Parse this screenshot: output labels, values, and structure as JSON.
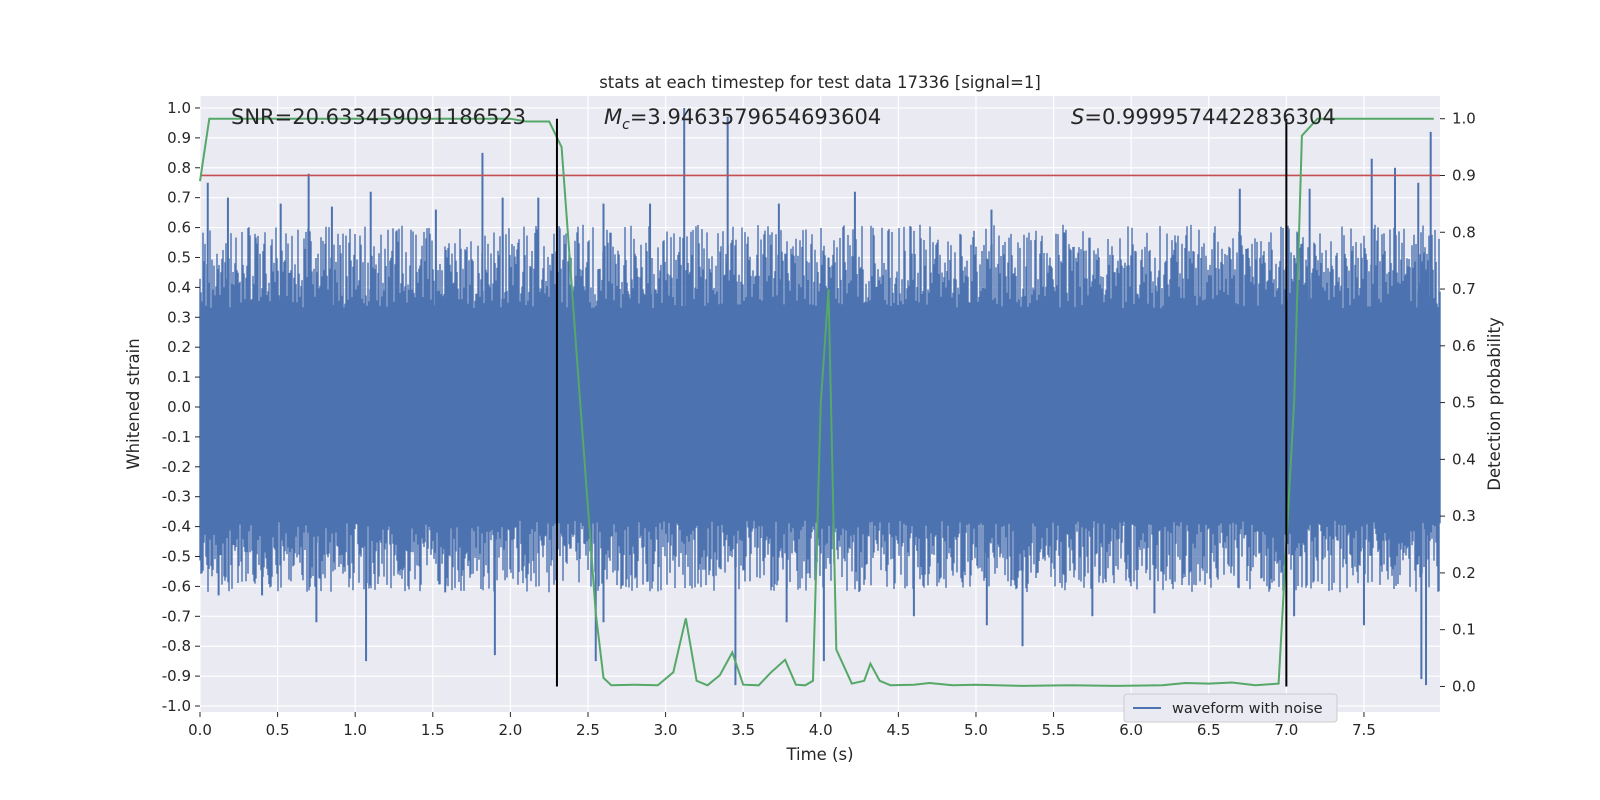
{
  "chart_data": {
    "type": "line",
    "title": "stats at each timestep for test data 17336 [signal=1]",
    "xlabel": "Time (s)",
    "ylabel": "Whitened strain",
    "y2label": "Detection probability",
    "xlim": [
      0.0,
      7.99
    ],
    "ylim": [
      -1.02,
      1.04
    ],
    "y2lim": [
      -0.045,
      1.04
    ],
    "xticks": [
      "0.0",
      "0.5",
      "1.0",
      "1.5",
      "2.0",
      "2.5",
      "3.0",
      "3.5",
      "4.0",
      "4.5",
      "5.0",
      "5.5",
      "6.0",
      "6.5",
      "7.0",
      "7.5"
    ],
    "yticks": [
      "1.0",
      "0.9",
      "0.8",
      "0.7",
      "0.6",
      "0.5",
      "0.4",
      "0.3",
      "0.2",
      "0.1",
      "0.0",
      "-0.1",
      "-0.2",
      "-0.3",
      "-0.4",
      "-0.5",
      "-0.6",
      "-0.7",
      "-0.8",
      "-0.9",
      "-1.0"
    ],
    "y2ticks": [
      "1.0",
      "0.9",
      "0.8",
      "0.7",
      "0.6",
      "0.5",
      "0.4",
      "0.3",
      "0.2",
      "0.1",
      "0.0"
    ],
    "grid": true,
    "legend": {
      "placement": "bottom-right",
      "entries": [
        "waveform with noise"
      ]
    },
    "annotations": {
      "snr": "SNR=20.633459091186523",
      "mc_symbol": "M",
      "mc_sub": "c",
      "mc_value": "=3.9463579654693604",
      "s_symbol": "S",
      "s_value": "=0.9999574422836304"
    },
    "threshold_y2": 0.9,
    "vertical_lines_x": [
      2.3,
      7.0
    ],
    "vertical_line_y2_range": [
      0.0,
      1.0
    ],
    "waveform_envelope": {
      "core_min": -0.38,
      "core_max": 0.33
    },
    "waveform_spikes": [
      {
        "x": 0.05,
        "y": 0.75
      },
      {
        "x": 0.18,
        "y": 0.7
      },
      {
        "x": 0.52,
        "y": 0.68
      },
      {
        "x": 0.7,
        "y": 0.78
      },
      {
        "x": 0.85,
        "y": 0.67
      },
      {
        "x": 1.1,
        "y": 0.72
      },
      {
        "x": 1.52,
        "y": 0.66
      },
      {
        "x": 1.82,
        "y": 0.85
      },
      {
        "x": 1.95,
        "y": 0.7
      },
      {
        "x": 2.18,
        "y": 0.7
      },
      {
        "x": 2.6,
        "y": 0.68
      },
      {
        "x": 2.9,
        "y": 0.68
      },
      {
        "x": 3.12,
        "y": 1.0
      },
      {
        "x": 3.4,
        "y": 0.97
      },
      {
        "x": 3.73,
        "y": 0.68
      },
      {
        "x": 4.05,
        "y": 0.5
      },
      {
        "x": 4.22,
        "y": 0.72
      },
      {
        "x": 5.1,
        "y": 0.66
      },
      {
        "x": 6.7,
        "y": 0.73
      },
      {
        "x": 7.15,
        "y": 0.73
      },
      {
        "x": 7.55,
        "y": 0.83
      },
      {
        "x": 7.7,
        "y": 0.8
      },
      {
        "x": 7.85,
        "y": 0.75
      },
      {
        "x": 7.93,
        "y": 0.92
      },
      {
        "x": 0.12,
        "y": -0.63
      },
      {
        "x": 0.4,
        "y": -0.63
      },
      {
        "x": 0.75,
        "y": -0.72
      },
      {
        "x": 1.07,
        "y": -0.85
      },
      {
        "x": 1.58,
        "y": -0.62
      },
      {
        "x": 1.9,
        "y": -0.83
      },
      {
        "x": 2.55,
        "y": -0.85
      },
      {
        "x": 2.6,
        "y": -0.72
      },
      {
        "x": 3.45,
        "y": -0.93
      },
      {
        "x": 3.78,
        "y": -0.72
      },
      {
        "x": 4.02,
        "y": -0.85
      },
      {
        "x": 4.6,
        "y": -0.7
      },
      {
        "x": 5.07,
        "y": -0.73
      },
      {
        "x": 5.3,
        "y": -0.8
      },
      {
        "x": 5.75,
        "y": -0.7
      },
      {
        "x": 6.15,
        "y": -0.69
      },
      {
        "x": 7.05,
        "y": -0.7
      },
      {
        "x": 7.5,
        "y": -0.73
      },
      {
        "x": 7.87,
        "y": -0.91
      },
      {
        "x": 7.9,
        "y": -0.93
      }
    ],
    "series": [
      {
        "name": "waveform with noise",
        "axis": "left",
        "color": "#4c72b0",
        "x": [
          0.0,
          7.99
        ],
        "y": [
          0.0,
          0.0
        ]
      },
      {
        "axis": "right",
        "color": "#55a868",
        "x": [
          0.0,
          0.06,
          0.2,
          0.5,
          1.0,
          1.5,
          2.0,
          2.1,
          2.25,
          2.33,
          2.45,
          2.55,
          2.6,
          2.65,
          2.8,
          2.95,
          3.05,
          3.13,
          3.2,
          3.27,
          3.35,
          3.43,
          3.5,
          3.6,
          3.68,
          3.77,
          3.84,
          3.9,
          3.95,
          4.0,
          4.05,
          4.1,
          4.2,
          4.28,
          4.32,
          4.38,
          4.45,
          4.6,
          4.7,
          4.85,
          5.0,
          5.3,
          5.6,
          5.9,
          6.2,
          6.35,
          6.5,
          6.65,
          6.8,
          6.95,
          7.05,
          7.1,
          7.2,
          7.5,
          7.95
        ],
        "y": [
          0.89,
          1.0,
          1.0,
          1.0,
          1.0,
          1.0,
          1.0,
          0.995,
          0.995,
          0.95,
          0.5,
          0.13,
          0.015,
          0.002,
          0.003,
          0.002,
          0.025,
          0.12,
          0.01,
          0.002,
          0.02,
          0.06,
          0.003,
          0.002,
          0.025,
          0.047,
          0.003,
          0.002,
          0.01,
          0.5,
          0.7,
          0.065,
          0.005,
          0.01,
          0.04,
          0.01,
          0.002,
          0.003,
          0.006,
          0.002,
          0.003,
          0.001,
          0.002,
          0.001,
          0.002,
          0.006,
          0.005,
          0.007,
          0.002,
          0.005,
          0.5,
          0.97,
          1.0,
          1.0,
          1.0
        ]
      },
      {
        "axis": "right",
        "color": "#c44e52",
        "x": [
          0.0,
          7.99
        ],
        "y": [
          0.9,
          0.9
        ]
      }
    ]
  }
}
